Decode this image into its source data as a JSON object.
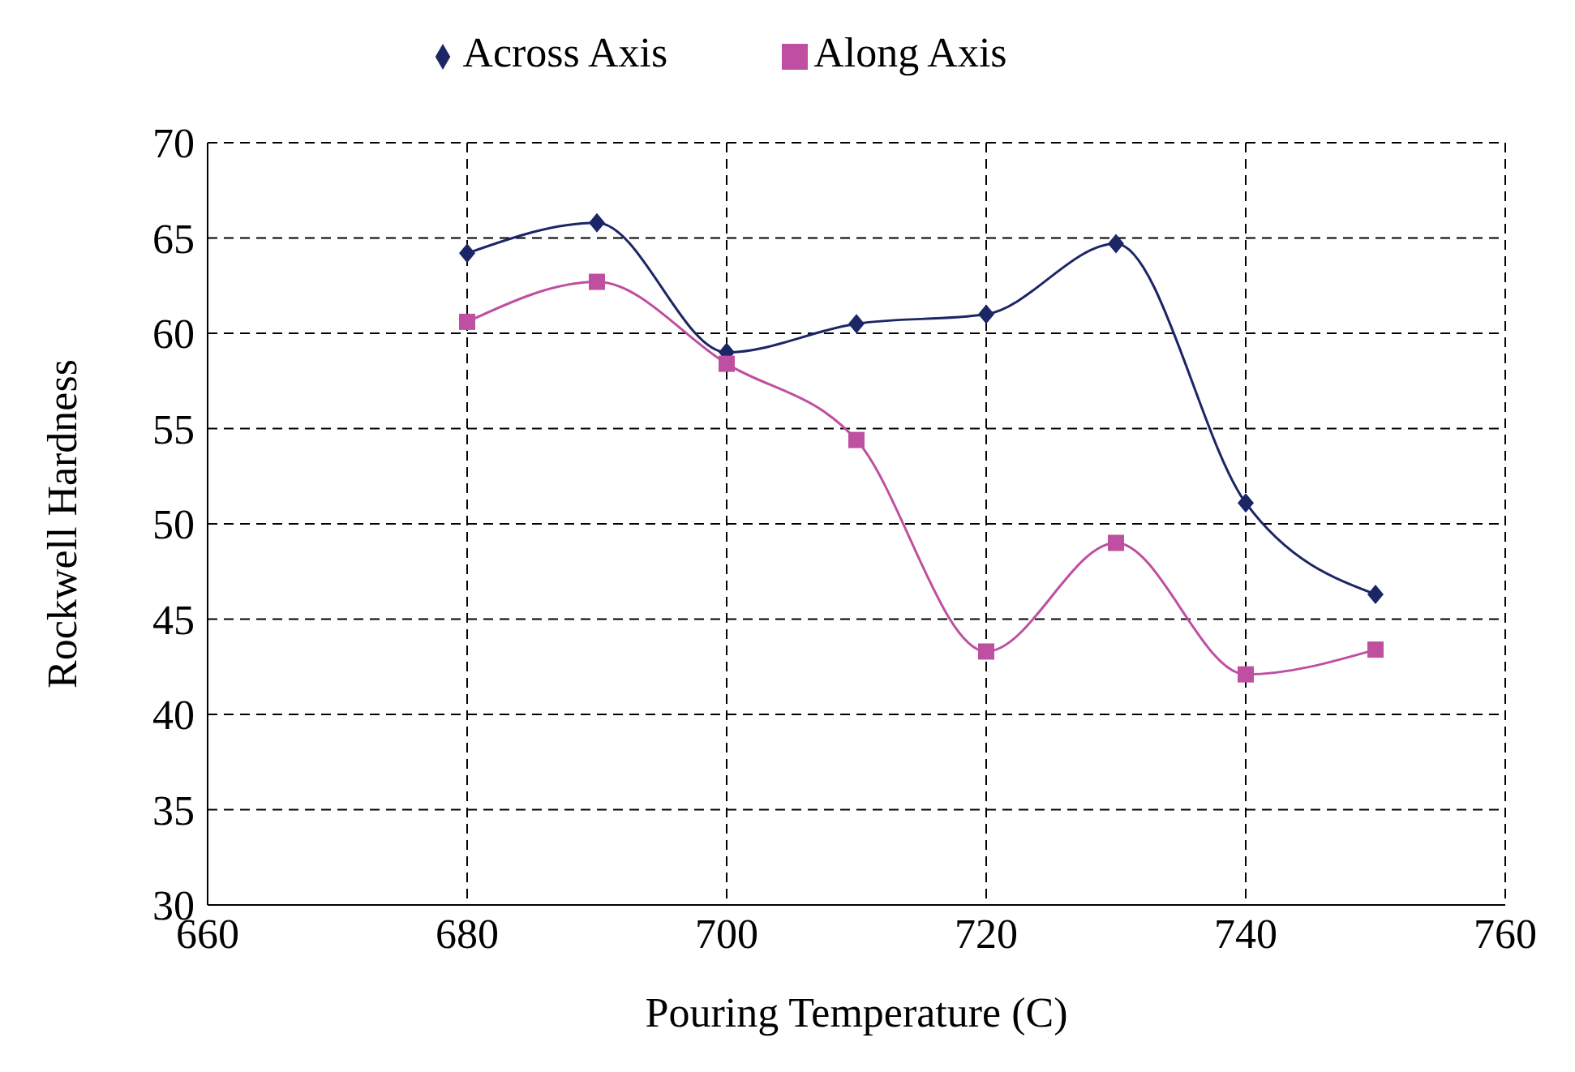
{
  "chart_data": {
    "type": "line",
    "xlabel": "Pouring Temperature (C)",
    "ylabel": "Rockwell Hardness",
    "x": [
      680,
      690,
      700,
      710,
      720,
      730,
      740,
      750
    ],
    "series": [
      {
        "name": "Across Axis",
        "color": "#1c2566",
        "marker": "diamond",
        "values": [
          64.2,
          65.8,
          59.0,
          60.5,
          61.0,
          64.7,
          51.1,
          46.3
        ]
      },
      {
        "name": "Along Axis",
        "color": "#bf4fa0",
        "marker": "square",
        "values": [
          60.6,
          62.7,
          58.4,
          54.4,
          43.3,
          49.0,
          42.1,
          43.4
        ]
      }
    ],
    "xlim": [
      660,
      760
    ],
    "xticks": [
      660,
      680,
      700,
      720,
      740,
      760
    ],
    "ylim": [
      30,
      70
    ],
    "yticks": [
      30,
      35,
      40,
      45,
      50,
      55,
      60,
      65,
      70
    ],
    "grid": true,
    "legend": "top"
  }
}
